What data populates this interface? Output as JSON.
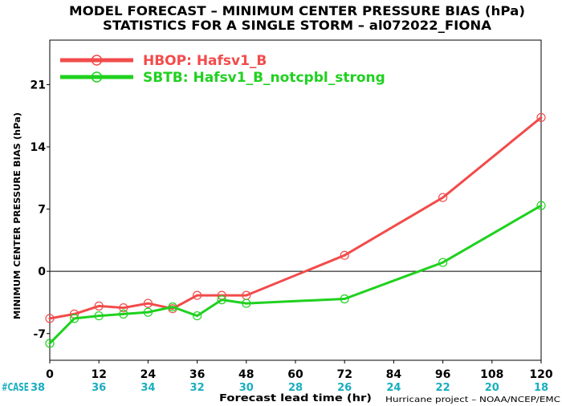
{
  "chart_data": {
    "type": "line",
    "title": "MODEL FORECAST – MINIMUM CENTER PRESSURE BIAS (hPa)",
    "subtitle": "STATISTICS FOR A SINGLE STORM – al072022_FIONA",
    "xlabel": "Forecast lead time (hr)",
    "ylabel": "MINIMUM CENTER PRESSURE BIAS (hPa)",
    "xlim": [
      0,
      120
    ],
    "ylim": [
      -10,
      26
    ],
    "xticks": [
      0,
      12,
      24,
      36,
      48,
      60,
      72,
      84,
      96,
      108,
      120
    ],
    "yticks": [
      -7,
      0,
      7,
      14,
      21
    ],
    "grid": false,
    "reference_line": 0,
    "legend_position": "top-left",
    "x": [
      0,
      6,
      12,
      18,
      24,
      30,
      36,
      42,
      48,
      72,
      96,
      120
    ],
    "series": [
      {
        "name": "HBOP: Hafsv1_B",
        "color": "#f24b4b",
        "values": [
          -5.3,
          -4.8,
          -3.9,
          -4.1,
          -3.6,
          -4.2,
          -2.7,
          -2.7,
          -2.7,
          1.8,
          8.3,
          17.3
        ]
      },
      {
        "name": "SBTB: Hafsv1_B_notcpbl_strong",
        "color": "#1fd11f",
        "values": [
          -8.1,
          -5.3,
          -5.0,
          -4.8,
          -4.6,
          -4.0,
          -5.0,
          -3.2,
          -3.6,
          -3.1,
          1.0,
          7.4
        ]
      }
    ],
    "case_label": "#CASE",
    "case_counts": [
      38,
      36,
      34,
      32,
      30,
      28,
      26,
      24,
      22,
      20,
      18
    ],
    "case_color": "#1aaebf",
    "credit": "Hurricane project – NOAA/NCEP/EMC"
  }
}
